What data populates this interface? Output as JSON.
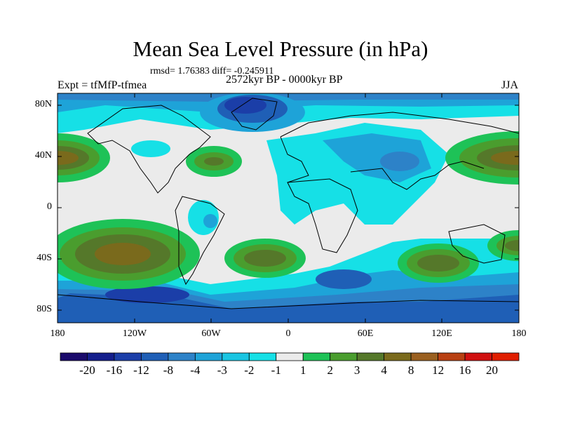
{
  "title": "Mean Sea Level Pressure (in hPa)",
  "stats": "rmsd= 1.76383 diff= -0.245911",
  "experiment": "Expt = tfMfP-tfmea",
  "period": "2572kyr BP - 0000kyr BP",
  "season": "JJA",
  "lat_labels": [
    "80N",
    "40N",
    "0",
    "40S",
    "80S"
  ],
  "lon_labels": [
    "180",
    "120W",
    "60W",
    "0",
    "60E",
    "120E",
    "180"
  ],
  "colorbar": {
    "labels": [
      "-20",
      "-16",
      "-12",
      "-8",
      "-4",
      "-3",
      "-2",
      "-1",
      "1",
      "2",
      "3",
      "4",
      "8",
      "12",
      "16",
      "20"
    ],
    "colors": [
      "#1a0a6b",
      "#141e8c",
      "#1b3ea8",
      "#1f5fb6",
      "#2d82c8",
      "#1ea3d8",
      "#19c5e2",
      "#16e0e6",
      "#ebebeb",
      "#1ec257",
      "#4a9d2e",
      "#55782a",
      "#7a6a1c",
      "#9a6020",
      "#b84012",
      "#d01010",
      "#e01e00"
    ]
  },
  "colors": {
    "ocean_neutral": "#ebebeb",
    "coast": "#000000"
  }
}
